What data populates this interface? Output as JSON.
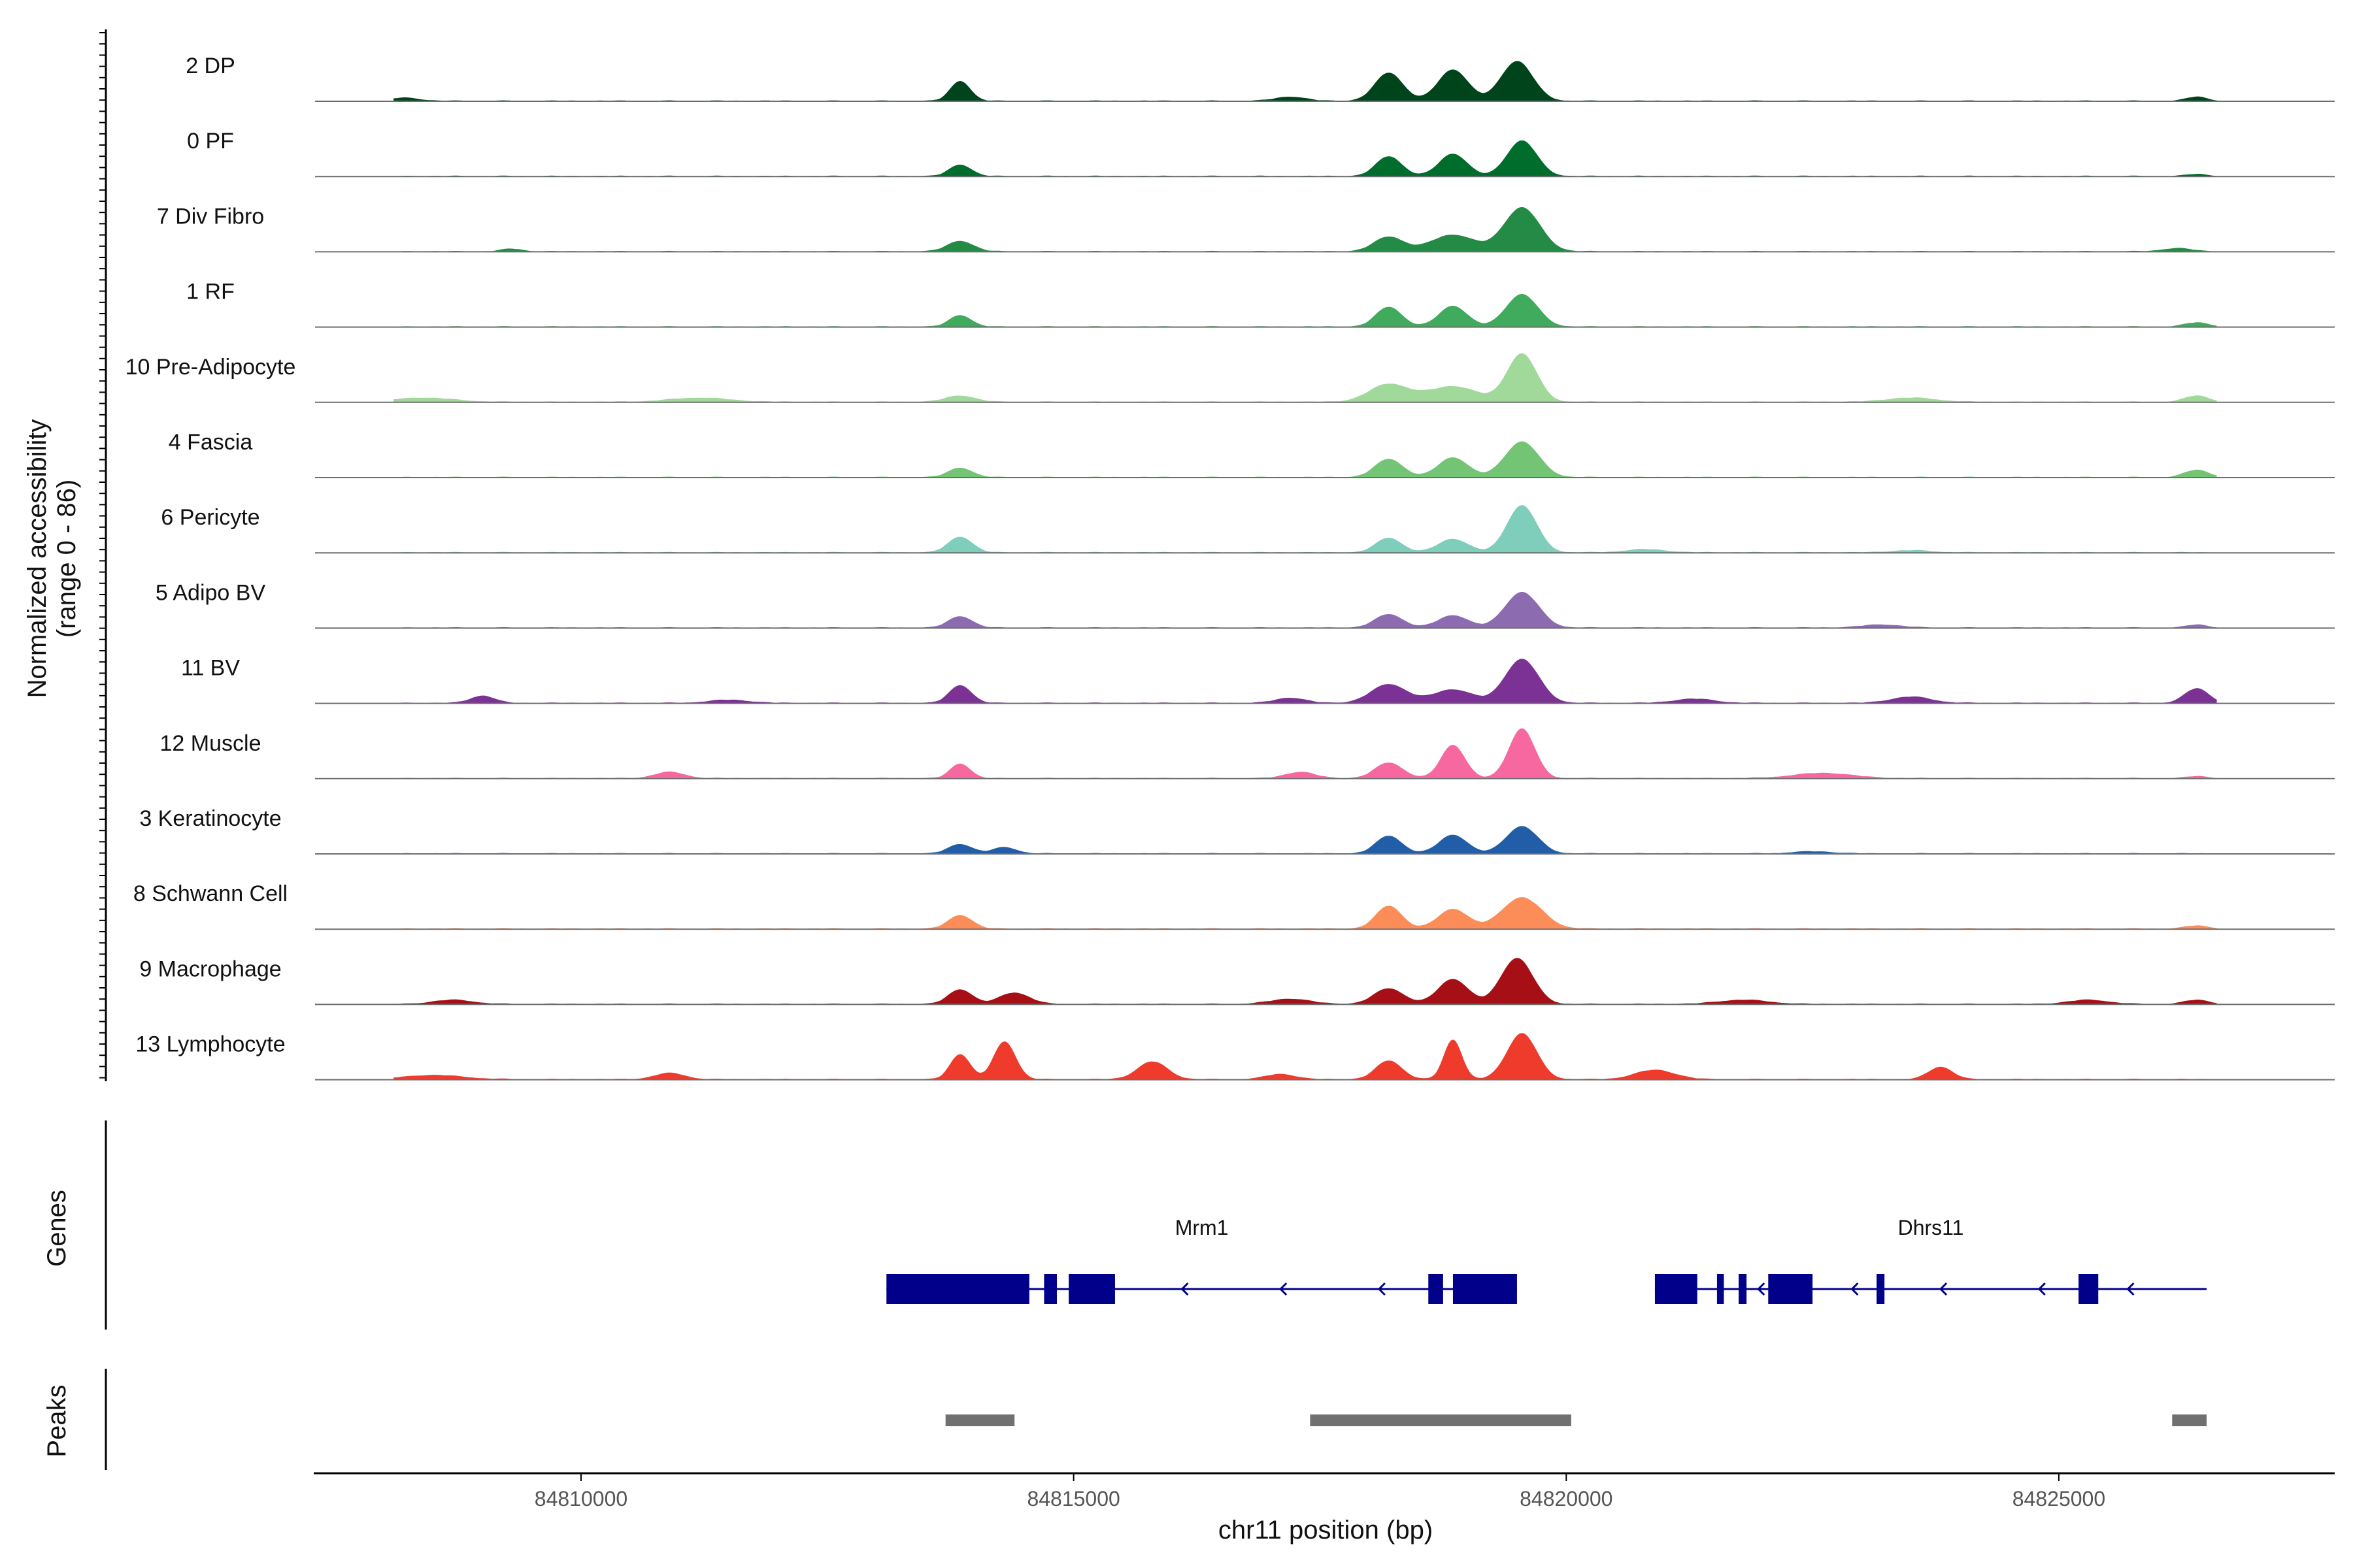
{
  "chart_data": {
    "type": "area",
    "title": "",
    "xlabel": "chr11 position (bp)",
    "ylabel": "Normalized accessibility\n(range 0 - 86)",
    "ylabel_lines": [
      "Normalized accessibility",
      "(range 0 - 86)"
    ],
    "ylim": [
      0,
      86
    ],
    "xlim": [
      84807300,
      84827800
    ],
    "x_ticks": [
      84810000,
      84815000,
      84820000,
      84825000
    ],
    "x_tick_labels": [
      "84810000",
      "84815000",
      "84820000",
      "84825000"
    ],
    "grid": false,
    "tracks": [
      {
        "name": "2 DP",
        "color": "#00441b",
        "peaks": [
          [
            84808200,
            6,
            150
          ],
          [
            84813850,
            38,
            100
          ],
          [
            84817200,
            8,
            150
          ],
          [
            84818200,
            54,
            140
          ],
          [
            84818850,
            60,
            150
          ],
          [
            84819500,
            76,
            160
          ],
          [
            84826400,
            8,
            100
          ]
        ]
      },
      {
        "name": "0 PF",
        "color": "#006d2c",
        "peaks": [
          [
            84813850,
            22,
            110
          ],
          [
            84818200,
            38,
            130
          ],
          [
            84818850,
            43,
            140
          ],
          [
            84819550,
            68,
            150
          ],
          [
            84826400,
            4,
            100
          ]
        ]
      },
      {
        "name": "7 Div Fibro",
        "color": "#238b45",
        "peaks": [
          [
            84809300,
            5,
            100
          ],
          [
            84813850,
            20,
            130
          ],
          [
            84818200,
            28,
            150
          ],
          [
            84818850,
            32,
            220
          ],
          [
            84819550,
            84,
            180
          ],
          [
            84826200,
            6,
            150
          ]
        ]
      },
      {
        "name": "1 RF",
        "color": "#41ab5d",
        "peaks": [
          [
            84813850,
            22,
            110
          ],
          [
            84818200,
            38,
            130
          ],
          [
            84818850,
            40,
            140
          ],
          [
            84819550,
            62,
            160
          ],
          [
            84826400,
            8,
            120
          ]
        ]
      },
      {
        "name": "10 Pre-Adipocyte",
        "color": "#a1d99b",
        "peaks": [
          [
            84808400,
            8,
            300
          ],
          [
            84811200,
            8,
            300
          ],
          [
            84813850,
            12,
            150
          ],
          [
            84818200,
            34,
            200
          ],
          [
            84818850,
            30,
            250
          ],
          [
            84819550,
            92,
            150
          ],
          [
            84823500,
            8,
            250
          ],
          [
            84826400,
            12,
            120
          ]
        ]
      },
      {
        "name": "4 Fascia",
        "color": "#74c476",
        "peaks": [
          [
            84813850,
            18,
            120
          ],
          [
            84818200,
            35,
            140
          ],
          [
            84818850,
            38,
            150
          ],
          [
            84819550,
            68,
            170
          ],
          [
            84826400,
            14,
            120
          ]
        ]
      },
      {
        "name": "6 Pericyte",
        "color": "#7fcdbb",
        "peaks": [
          [
            84813850,
            30,
            120
          ],
          [
            84818200,
            28,
            130
          ],
          [
            84818850,
            26,
            150
          ],
          [
            84819550,
            90,
            150
          ],
          [
            84820800,
            6,
            200
          ],
          [
            84823500,
            4,
            200
          ]
        ]
      },
      {
        "name": "5 Adipo BV",
        "color": "#8c6bb1",
        "peaks": [
          [
            84813850,
            22,
            120
          ],
          [
            84818200,
            26,
            140
          ],
          [
            84818850,
            24,
            150
          ],
          [
            84819550,
            68,
            170
          ],
          [
            84823200,
            6,
            200
          ],
          [
            84826400,
            6,
            100
          ]
        ]
      },
      {
        "name": "11 BV",
        "color": "#7b3294",
        "peaks": [
          [
            84809000,
            14,
            120
          ],
          [
            84811500,
            6,
            200
          ],
          [
            84813850,
            34,
            110
          ],
          [
            84817200,
            10,
            150
          ],
          [
            84818200,
            36,
            180
          ],
          [
            84818850,
            26,
            200
          ],
          [
            84819550,
            84,
            170
          ],
          [
            84821300,
            8,
            200
          ],
          [
            84823500,
            12,
            200
          ],
          [
            84826400,
            28,
            120
          ]
        ]
      },
      {
        "name": "12 Muscle",
        "color": "#f768a1",
        "peaks": [
          [
            84810900,
            12,
            150
          ],
          [
            84813850,
            28,
            100
          ],
          [
            84817300,
            12,
            150
          ],
          [
            84818200,
            30,
            140
          ],
          [
            84818850,
            64,
            120
          ],
          [
            84819550,
            95,
            130
          ],
          [
            84822600,
            10,
            300
          ],
          [
            84826400,
            4,
            100
          ]
        ]
      },
      {
        "name": "3 Keratinocyte",
        "color": "#225ea8",
        "peaks": [
          [
            84813850,
            18,
            120
          ],
          [
            84814300,
            12,
            120
          ],
          [
            84818200,
            34,
            130
          ],
          [
            84818850,
            36,
            140
          ],
          [
            84819550,
            52,
            160
          ],
          [
            84822500,
            4,
            200
          ]
        ]
      },
      {
        "name": "8 Schwann Cell",
        "color": "#fc8d59",
        "peaks": [
          [
            84813850,
            26,
            120
          ],
          [
            84818200,
            44,
            130
          ],
          [
            84818850,
            38,
            150
          ],
          [
            84819550,
            60,
            200
          ],
          [
            84826400,
            6,
            120
          ]
        ]
      },
      {
        "name": "9 Macrophage",
        "color": "#a50f15",
        "peaks": [
          [
            84808700,
            8,
            200
          ],
          [
            84813850,
            28,
            120
          ],
          [
            84814400,
            22,
            150
          ],
          [
            84817200,
            10,
            200
          ],
          [
            84818200,
            30,
            150
          ],
          [
            84818850,
            48,
            150
          ],
          [
            84819500,
            88,
            160
          ],
          [
            84821800,
            8,
            250
          ],
          [
            84825300,
            8,
            200
          ],
          [
            84826400,
            8,
            120
          ]
        ]
      },
      {
        "name": "13 Lymphocyte",
        "color": "#ef3b2c",
        "peaks": [
          [
            84808500,
            8,
            300
          ],
          [
            84810900,
            12,
            150
          ],
          [
            84813850,
            48,
            100
          ],
          [
            84814300,
            72,
            110
          ],
          [
            84815800,
            34,
            150
          ],
          [
            84817100,
            10,
            150
          ],
          [
            84818200,
            36,
            130
          ],
          [
            84818850,
            76,
            90
          ],
          [
            84819550,
            88,
            150
          ],
          [
            84820900,
            18,
            200
          ],
          [
            84823800,
            24,
            120
          ]
        ]
      }
    ]
  },
  "genes_track": {
    "label": "Genes",
    "color": "#00008b",
    "genes": [
      {
        "name": "Mrm1",
        "start": 84813100,
        "end": 84819500,
        "strand": "-",
        "exons": [
          [
            84813100,
            84814550
          ],
          [
            84814700,
            84814830
          ],
          [
            84814950,
            84815420
          ],
          [
            84818600,
            84818750
          ],
          [
            84818850,
            84819500
          ]
        ],
        "arrows": [
          84816100,
          84817100,
          84818100
        ]
      },
      {
        "name": "Dhrs11",
        "start": 84820900,
        "end": 84826500,
        "strand": "-",
        "exons": [
          [
            84820900,
            84821330
          ],
          [
            84821530,
            84821600
          ],
          [
            84821750,
            84821830
          ],
          [
            84822050,
            84822500
          ],
          [
            84823150,
            84823230
          ],
          [
            84825200,
            84825400
          ]
        ],
        "arrows": [
          84821950,
          84822900,
          84823800,
          84824800,
          84825700
        ]
      }
    ]
  },
  "peaks_track": {
    "label": "Peaks",
    "color": "#707070",
    "regions": [
      [
        84813700,
        84814400
      ],
      [
        84817400,
        84820050
      ],
      [
        84826150,
        84826500
      ]
    ]
  }
}
